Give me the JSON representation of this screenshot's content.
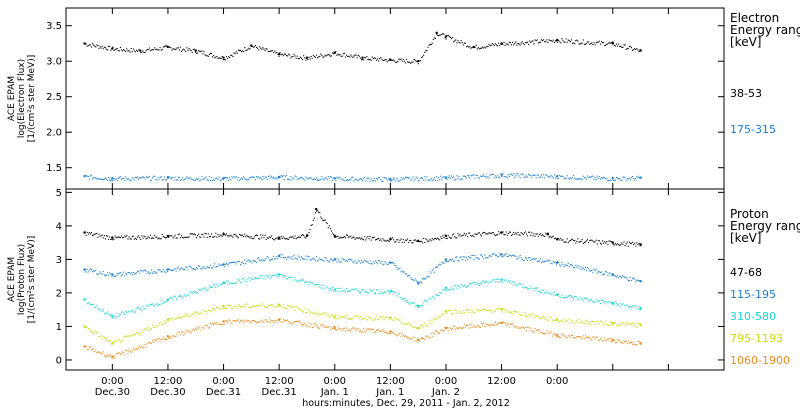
{
  "chart_data": [
    {
      "type": "scatter",
      "ylabel_lines": [
        "ACE EPAM",
        "log(Electron Flux)",
        "[1/(cm²s ster MeV)]"
      ],
      "ylim": [
        1.2,
        3.75
      ],
      "yticks": [
        1.5,
        2.0,
        2.5,
        3.0,
        3.5
      ],
      "ytick_labels": [
        "1.5",
        "2.0",
        "2.5",
        "3.0",
        "3.5"
      ],
      "legend": {
        "title_lines": [
          "Electron",
          "Energy range",
          "[keV]"
        ],
        "items": [
          {
            "label": "38-53",
            "color": "#000000"
          },
          {
            "label": "175-315",
            "color": "#1a7fd6"
          }
        ]
      },
      "series": [
        {
          "label": "38-53",
          "color": "#000000",
          "x": [
            -6,
            0,
            6,
            12,
            18,
            24,
            30,
            36,
            42,
            48,
            54,
            60,
            66,
            70,
            72,
            78,
            84,
            96,
            108,
            114
          ],
          "y": [
            3.25,
            3.18,
            3.15,
            3.2,
            3.15,
            3.05,
            3.22,
            3.1,
            3.05,
            3.12,
            3.05,
            3.02,
            3.0,
            3.4,
            3.35,
            3.2,
            3.25,
            3.3,
            3.25,
            3.15
          ]
        },
        {
          "label": "175-315",
          "color": "#1a7fd6",
          "x": [
            -6,
            0,
            12,
            24,
            36,
            48,
            60,
            72,
            84,
            96,
            108,
            114
          ],
          "y": [
            1.38,
            1.35,
            1.36,
            1.35,
            1.37,
            1.35,
            1.34,
            1.36,
            1.4,
            1.38,
            1.35,
            1.36
          ]
        }
      ]
    },
    {
      "type": "scatter",
      "ylabel_lines": [
        "ACE EPAM",
        "log(Proton Flux)",
        "[1/(cm²s ster MeV)]"
      ],
      "ylim": [
        -0.3,
        5.1
      ],
      "yticks": [
        0,
        1,
        2,
        3,
        4,
        5
      ],
      "ytick_labels": [
        "0",
        "1",
        "2",
        "3",
        "4",
        "5"
      ],
      "legend": {
        "title_lines": [
          "Proton",
          "Energy range",
          "[keV]"
        ],
        "items": [
          {
            "label": "47-68",
            "color": "#000000"
          },
          {
            "label": "115-195",
            "color": "#1a7fd6"
          },
          {
            "label": "310-580",
            "color": "#19d8d0"
          },
          {
            "label": "795-1193",
            "color": "#c8dc10"
          },
          {
            "label": "1060-1900",
            "color": "#ee8a1a"
          }
        ]
      },
      "series": [
        {
          "label": "47-68",
          "color": "#000000",
          "x": [
            -6,
            0,
            12,
            24,
            36,
            42,
            44,
            48,
            60,
            66,
            72,
            84,
            94,
            96,
            108,
            114
          ],
          "y": [
            3.8,
            3.65,
            3.7,
            3.75,
            3.65,
            3.7,
            4.5,
            3.7,
            3.6,
            3.55,
            3.7,
            3.8,
            3.75,
            3.6,
            3.5,
            3.45
          ]
        },
        {
          "label": "115-195",
          "color": "#1a7fd6",
          "x": [
            -6,
            0,
            12,
            24,
            36,
            48,
            60,
            66,
            72,
            84,
            96,
            108,
            114
          ],
          "y": [
            2.7,
            2.55,
            2.7,
            2.85,
            3.1,
            3.0,
            2.9,
            2.3,
            3.0,
            3.15,
            2.9,
            2.55,
            2.35
          ]
        },
        {
          "label": "310-580",
          "color": "#19d8d0",
          "x": [
            -6,
            0,
            12,
            24,
            36,
            48,
            60,
            66,
            72,
            84,
            96,
            108,
            114
          ],
          "y": [
            1.8,
            1.3,
            1.8,
            2.3,
            2.55,
            2.1,
            2.05,
            1.6,
            2.15,
            2.4,
            1.95,
            1.7,
            1.55
          ]
        },
        {
          "label": "795-1193",
          "color": "#c8dc10",
          "x": [
            -6,
            0,
            12,
            24,
            36,
            48,
            60,
            66,
            72,
            84,
            96,
            108,
            114
          ],
          "y": [
            1.0,
            0.5,
            1.2,
            1.6,
            1.65,
            1.3,
            1.25,
            0.95,
            1.45,
            1.5,
            1.2,
            1.1,
            1.05
          ]
        },
        {
          "label": "1060-1900",
          "color": "#ee8a1a",
          "x": [
            -6,
            0,
            12,
            24,
            36,
            48,
            60,
            66,
            72,
            84,
            96,
            108,
            114
          ],
          "y": [
            0.4,
            0.1,
            0.7,
            1.15,
            1.2,
            0.95,
            0.85,
            0.6,
            0.95,
            1.1,
            0.75,
            0.6,
            0.5
          ]
        }
      ]
    }
  ],
  "x_axis": {
    "xlim": [
      -10,
      132
    ],
    "tick_hours": [
      0,
      12,
      24,
      36,
      48,
      60,
      72,
      84,
      96,
      108,
      120
    ],
    "tick_time_labels": [
      "0:00",
      "12:00",
      "0:00",
      "12:00",
      "0:00",
      "12:00",
      "0:00",
      "12:00",
      "0:00"
    ],
    "tick_time_hours": [
      0,
      12,
      24,
      36,
      48,
      60,
      72,
      84,
      96
    ],
    "tick_date_labels": [
      "Dec.30",
      "Dec.30",
      "Dec.31",
      "Dec.31",
      "Jan. 1",
      "Jan. 1",
      "Jan. 2"
    ],
    "tick_date_hours": [
      0,
      12,
      24,
      36,
      48,
      60,
      72
    ],
    "caption": "hours:minutes, Dec. 29, 2011 - Jan. 2, 2012"
  }
}
